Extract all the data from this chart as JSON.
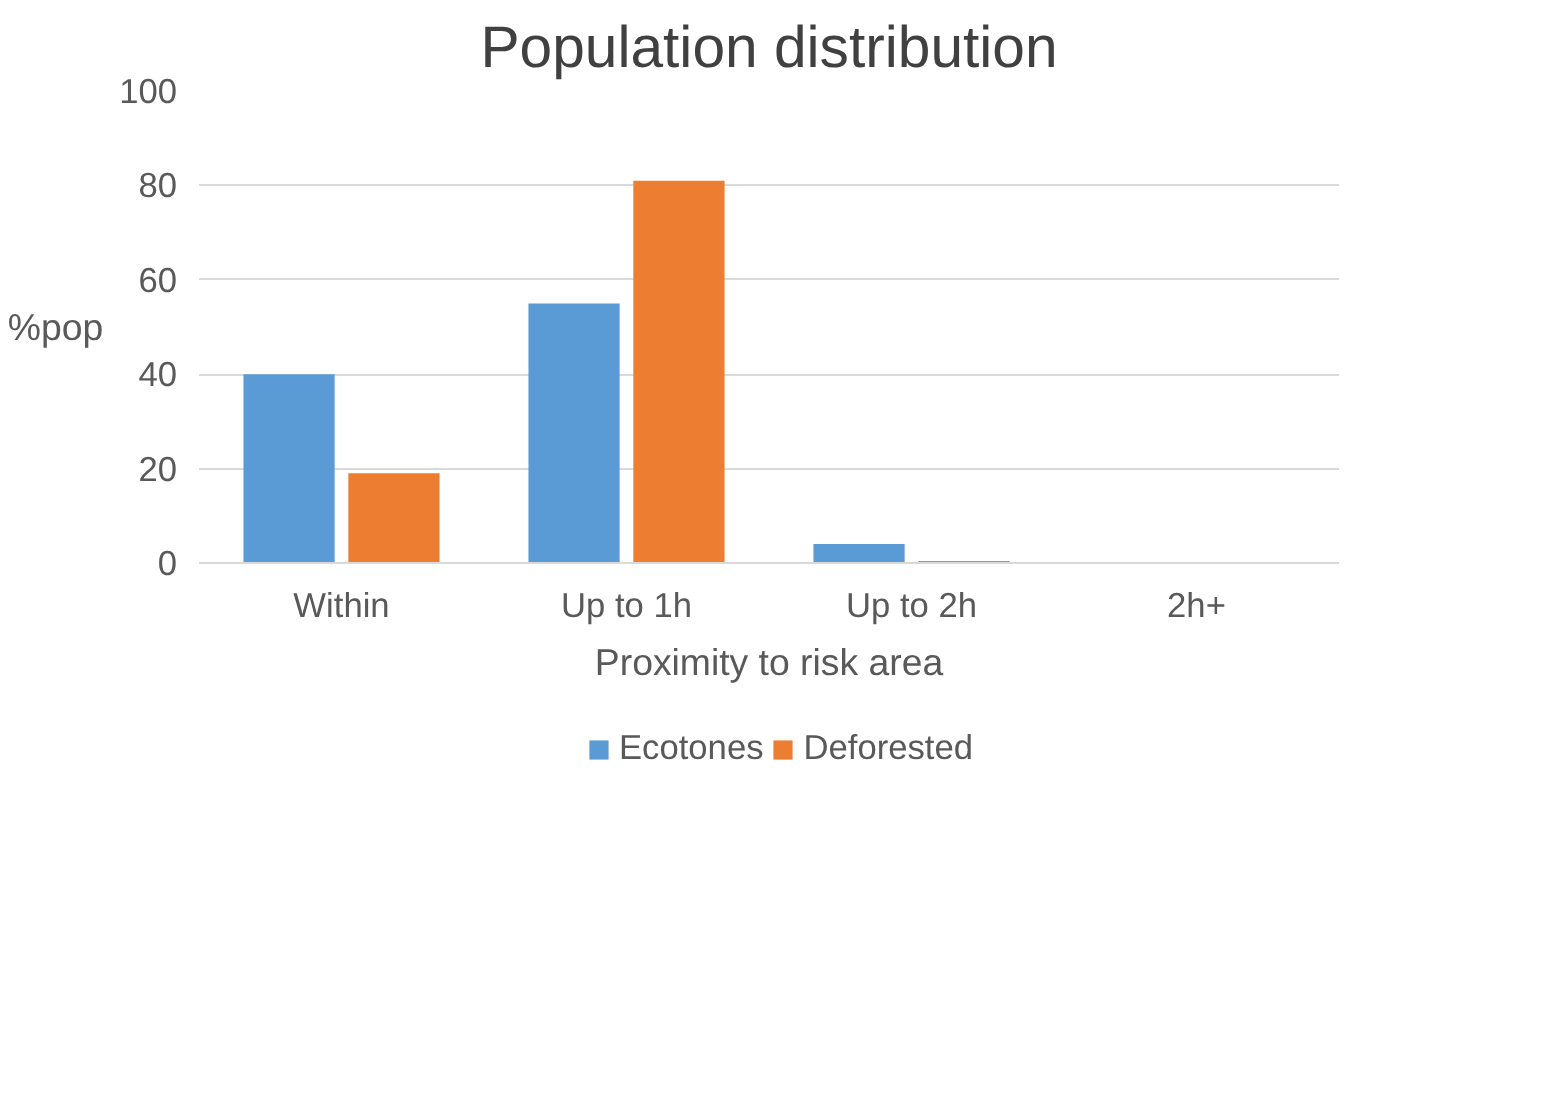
{
  "chart_data": {
    "type": "bar",
    "title": "Population distribution",
    "xlabel": "Proximity to risk area",
    "ylabel": "%pop",
    "categories": [
      "Within",
      "Up to 1h",
      "Up to 2h",
      "2h+"
    ],
    "series": [
      {
        "name": "Ecotones",
        "color": "#5b9bd5",
        "values": [
          40,
          55,
          4,
          0
        ]
      },
      {
        "name": "Deforested",
        "color": "#ed7d31",
        "values": [
          19,
          81,
          0.4,
          0
        ]
      }
    ],
    "ylim": [
      0,
      100
    ],
    "yticks": [
      0,
      20,
      40,
      60,
      80,
      100
    ],
    "grid": "y",
    "legend": "bottom"
  }
}
